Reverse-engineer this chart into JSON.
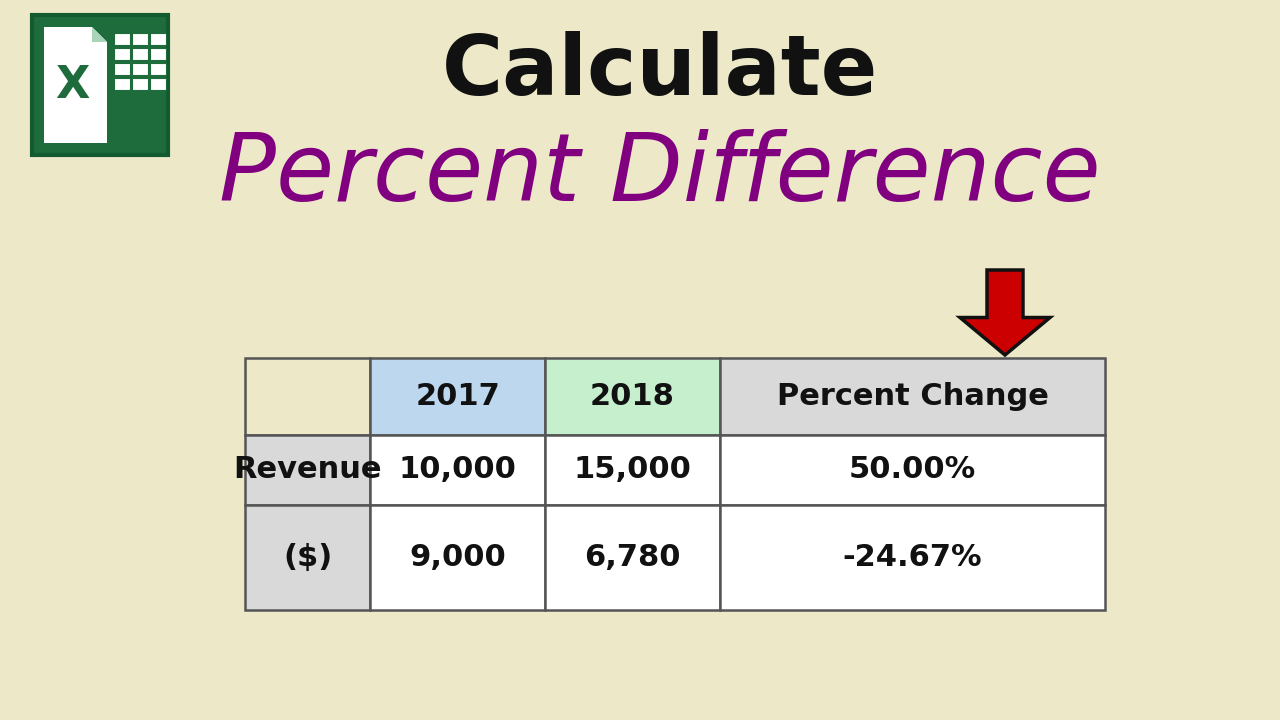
{
  "bg_color": "#ede9c8",
  "title_calculate": "Calculate",
  "title_percent_diff": "Percent Difference",
  "title_calculate_color": "#111111",
  "title_percent_diff_color": "#800080",
  "header_col1_color": "#bdd7ee",
  "header_col2_color": "#c6efce",
  "header_col3_color": "#d9d9d9",
  "row_label_color": "#d9d9d9",
  "row_data_color": "#ffffff",
  "arrow_color": "#cc0000",
  "table_headers": [
    "",
    "2017",
    "2018",
    "Percent Change"
  ],
  "table_row_labels": [
    "Revenue",
    "($)"
  ],
  "table_data": [
    [
      "10,000",
      "15,000",
      "50.00%"
    ],
    [
      "9,000",
      "6,780",
      "-24.67%"
    ]
  ],
  "excel_green_dark": "#1e6b3c",
  "excel_green_light": "#21a55a",
  "excel_border": "#145a30"
}
